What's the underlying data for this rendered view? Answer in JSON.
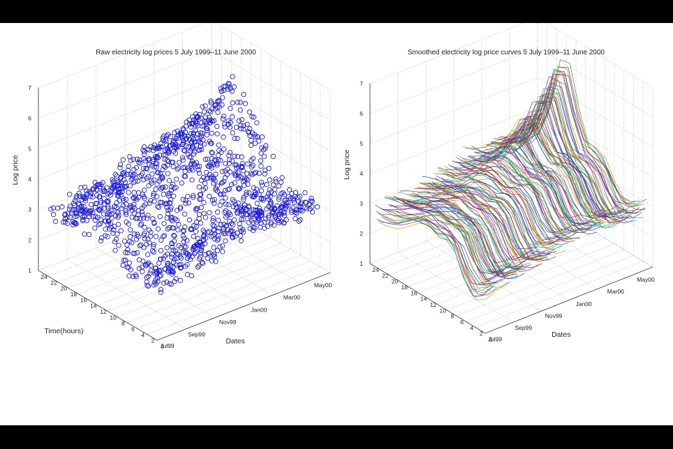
{
  "chart_data": [
    {
      "type": "scatter3d",
      "title": "Raw electricity log prices 5 July 1999–11 June 2000",
      "xlabel": "Time(hours)",
      "ylabel": "Dates",
      "zlabel": "Log price",
      "x_ticks": [
        "0",
        "2",
        "4",
        "6",
        "8",
        "10",
        "12",
        "14",
        "16",
        "18",
        "20",
        "22",
        "24"
      ],
      "y_ticks": [
        "Jul99",
        "Sep99",
        "Nov99",
        "Jan00",
        "Mar00",
        "May00"
      ],
      "z_ticks": [
        "1",
        "2",
        "3",
        "4",
        "5",
        "6",
        "7"
      ],
      "xlim": [
        0,
        24
      ],
      "zlim": [
        1,
        7
      ],
      "grid": true,
      "series": [
        {
          "color": "#1a1adb",
          "marker": "circle",
          "points": [
            {
              "hour": 0,
              "date": "Jul99",
              "value": 2.8
            },
            {
              "hour": 6,
              "date": "Jul99",
              "value": 2.4
            },
            {
              "hour": 12,
              "date": "Jul99",
              "value": 3.3
            },
            {
              "hour": 18,
              "date": "Jul99",
              "value": 3.2
            },
            {
              "hour": 24,
              "date": "Jul99",
              "value": 2.7
            },
            {
              "hour": 0,
              "date": "Sep99",
              "value": 3.0
            },
            {
              "hour": 6,
              "date": "Sep99",
              "value": 2.6
            },
            {
              "hour": 12,
              "date": "Sep99",
              "value": 3.4
            },
            {
              "hour": 18,
              "date": "Sep99",
              "value": 3.3
            },
            {
              "hour": 24,
              "date": "Sep99",
              "value": 2.9
            },
            {
              "hour": 0,
              "date": "Nov99",
              "value": 3.1
            },
            {
              "hour": 6,
              "date": "Nov99",
              "value": 2.8
            },
            {
              "hour": 12,
              "date": "Nov99",
              "value": 3.5
            },
            {
              "hour": 18,
              "date": "Nov99",
              "value": 3.6
            },
            {
              "hour": 24,
              "date": "Nov99",
              "value": 3.1
            },
            {
              "hour": 0,
              "date": "Jan00",
              "value": 3.6
            },
            {
              "hour": 6,
              "date": "Jan00",
              "value": 3.3
            },
            {
              "hour": 12,
              "date": "Jan00",
              "value": 4.0
            },
            {
              "hour": 18,
              "date": "Jan00",
              "value": 4.2
            },
            {
              "hour": 24,
              "date": "Jan00",
              "value": 3.4
            },
            {
              "hour": 0,
              "date": "Mar00",
              "value": 3.4
            },
            {
              "hour": 6,
              "date": "Mar00",
              "value": 3.1
            },
            {
              "hour": 12,
              "date": "Mar00",
              "value": 3.9
            },
            {
              "hour": 18,
              "date": "Mar00",
              "value": 4.8
            },
            {
              "hour": 24,
              "date": "Mar00",
              "value": 3.5
            },
            {
              "hour": 0,
              "date": "May00",
              "value": 3.3
            },
            {
              "hour": 6,
              "date": "May00",
              "value": 3.0
            },
            {
              "hour": 12,
              "date": "May00",
              "value": 4.1
            },
            {
              "hour": 18,
              "date": "May00",
              "value": 5.7
            },
            {
              "hour": 24,
              "date": "May00",
              "value": 3.2
            }
          ]
        }
      ]
    },
    {
      "type": "line3d",
      "title": "Smoothed electricity log price curves 5 July 1999–11 June 2000",
      "xlabel": "",
      "ylabel": "Dates",
      "zlabel": "Log price",
      "x_ticks": [
        "0",
        "2",
        "4",
        "6",
        "8",
        "10",
        "12",
        "14",
        "16",
        "18",
        "20",
        "22",
        "24"
      ],
      "y_ticks": [
        "Jul99",
        "Sep99",
        "Nov99",
        "Jan00",
        "Mar00",
        "May00"
      ],
      "z_ticks": [
        "1",
        "2",
        "3",
        "4",
        "5",
        "6",
        "7"
      ],
      "xlim": [
        0,
        24
      ],
      "zlim": [
        1,
        7
      ],
      "grid": true,
      "colors": [
        "#d62020",
        "#1f9f2a",
        "#1a2ad6",
        "#a020a0",
        "#1aa6a6",
        "#c8a000",
        "#444444"
      ],
      "series": [
        {
          "date": "Jul99",
          "values": [
            2.6,
            2.2,
            2.0,
            2.4,
            3.1,
            3.3,
            3.2,
            3.3,
            3.2,
            3.0,
            2.8,
            2.7,
            2.6
          ]
        },
        {
          "date": "Sep99",
          "values": [
            2.8,
            2.5,
            2.3,
            2.6,
            3.2,
            3.4,
            3.3,
            3.4,
            3.3,
            3.2,
            3.0,
            2.9,
            2.8
          ]
        },
        {
          "date": "Nov99",
          "values": [
            3.0,
            2.7,
            2.5,
            2.8,
            3.4,
            3.6,
            3.5,
            3.6,
            3.6,
            3.5,
            3.2,
            3.1,
            3.0
          ]
        },
        {
          "date": "Jan00",
          "values": [
            3.3,
            3.0,
            2.9,
            3.2,
            3.8,
            4.0,
            3.9,
            4.1,
            4.2,
            4.0,
            3.6,
            3.4,
            3.3
          ]
        },
        {
          "date": "Mar00",
          "values": [
            3.2,
            2.9,
            2.8,
            3.1,
            3.7,
            3.9,
            3.8,
            4.2,
            4.8,
            4.6,
            3.8,
            3.5,
            3.3
          ]
        },
        {
          "date": "May00",
          "values": [
            3.1,
            2.8,
            2.7,
            3.0,
            3.6,
            3.8,
            3.9,
            4.8,
            6.1,
            6.0,
            4.5,
            3.6,
            3.2
          ]
        }
      ]
    }
  ]
}
